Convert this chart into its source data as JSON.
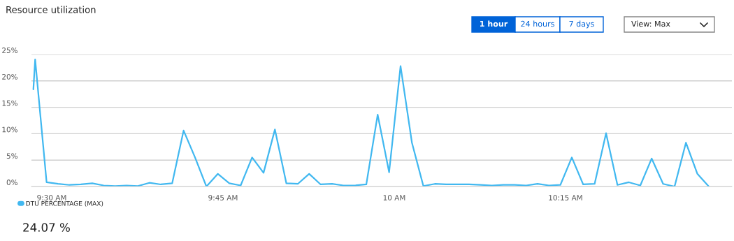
{
  "chart_data": {
    "type": "line",
    "title": "Resource utilization",
    "x": [
      9.4732,
      9.4758,
      9.4925,
      9.5092,
      9.5258,
      9.5425,
      9.5592,
      9.5758,
      9.5925,
      9.6092,
      9.6258,
      9.6425,
      9.6592,
      9.6758,
      9.6925,
      9.7092,
      9.7258,
      9.7425,
      9.7592,
      9.7758,
      9.7925,
      9.8092,
      9.8258,
      9.8425,
      9.8592,
      9.8758,
      9.8925,
      9.9092,
      9.9258,
      9.9425,
      9.9592,
      9.9758,
      9.9925,
      10.0092,
      10.0258,
      10.0425,
      10.0592,
      10.0758,
      10.0925,
      10.1092,
      10.1258,
      10.1425,
      10.1592,
      10.1758,
      10.1925,
      10.2092,
      10.2258,
      10.2425,
      10.2592,
      10.2758,
      10.2925,
      10.3092,
      10.3258,
      10.3425,
      10.3592,
      10.3758,
      10.3925,
      10.4092,
      10.4258,
      10.4425,
      10.4592
    ],
    "series": [
      {
        "name": "DTU PERCENTAGE (MAX)",
        "color": "#41b8f0",
        "values": [
          18.4,
          24.07,
          0.8,
          0.5,
          0.3,
          0.4,
          0.6,
          0.2,
          0.1,
          0.2,
          0.1,
          0.7,
          0.4,
          0.6,
          10.6,
          5.5,
          0,
          2.4,
          0.6,
          0.2,
          5.5,
          2.6,
          10.8,
          0.6,
          0.5,
          2.4,
          0.4,
          0.5,
          0.2,
          0.2,
          0.4,
          13.6,
          2.7,
          22.8,
          8.3,
          0.1,
          0.5,
          0.4,
          0.4,
          0.4,
          0.3,
          0.2,
          0.3,
          0.3,
          0.2,
          0.5,
          0.2,
          0.3,
          5.5,
          0.4,
          0.5,
          10.1,
          0.3,
          0.8,
          0.2,
          5.3,
          0.5,
          0,
          8.3,
          2.4,
          0
        ]
      }
    ],
    "xlim": [
      9.4704,
      10.4929
    ],
    "xticks": [
      {
        "value": 9.5,
        "label": "9:30 AM"
      },
      {
        "value": 9.75,
        "label": "9:45 AM"
      },
      {
        "value": 10,
        "label": "10 AM"
      },
      {
        "value": 10.25,
        "label": "10:15 AM"
      }
    ],
    "ylim": [
      0,
      25
    ],
    "yticks": [
      {
        "value": 0,
        "label": "0%"
      },
      {
        "value": 5,
        "label": "5%"
      },
      {
        "value": 10,
        "label": "10%"
      },
      {
        "value": 15,
        "label": "15%"
      },
      {
        "value": 20,
        "label": "20%"
      },
      {
        "value": 25,
        "label": "25%"
      }
    ],
    "grid": "y",
    "legend": "bottom left",
    "marker": "none",
    "line_style": "solid",
    "annotations": [
      "1 hour",
      "24 hours",
      "7 days",
      "View: Max",
      "24.07 %"
    ]
  }
}
